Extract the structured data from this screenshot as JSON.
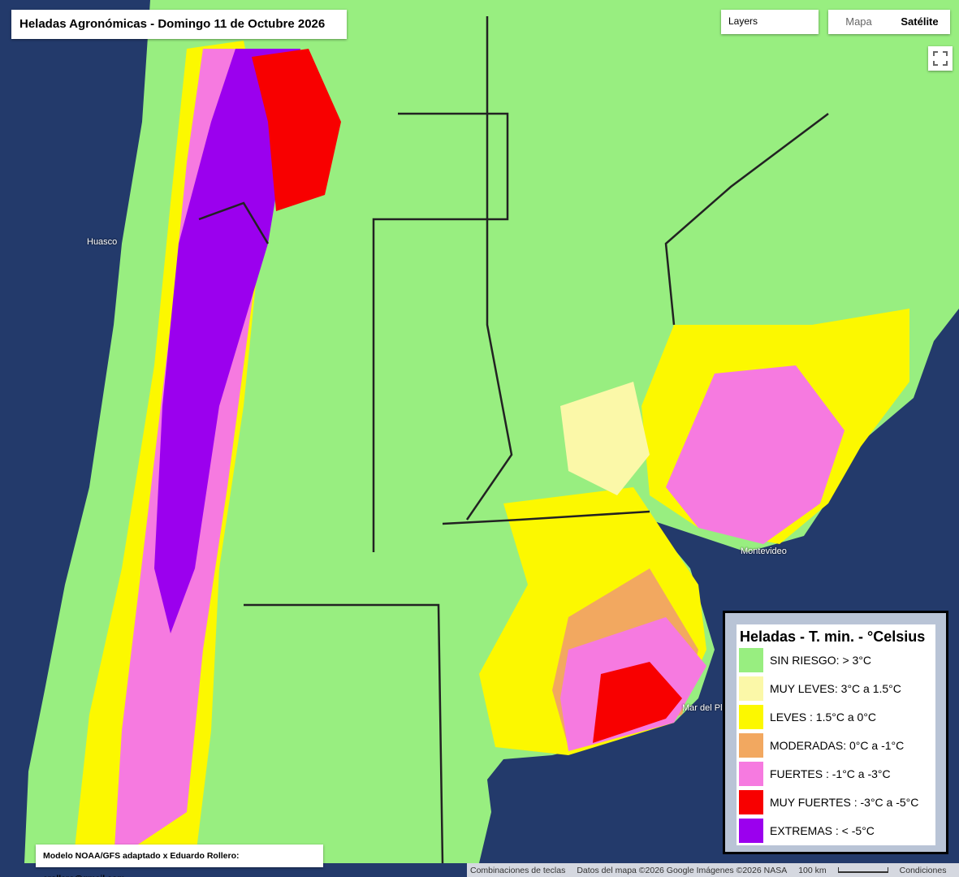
{
  "header": {
    "title": "Heladas Agronómicas - Domingo 11 de Octubre 2026"
  },
  "controls": {
    "layers": "Layers",
    "map": "Mapa",
    "satellite": "Satélite"
  },
  "places": [
    "Huasco",
    "Mar del Plata",
    "Montevideo"
  ],
  "legend": {
    "title": "Heladas - T. min. - °Celsius",
    "items": [
      {
        "label": "SIN RIESGO: > 3°C",
        "color": "#98ee80"
      },
      {
        "label": "MUY LEVES: 3°C a 1.5°C",
        "color": "#fbf8a8"
      },
      {
        "label": "LEVES : 1.5°C a 0°C",
        "color": "#fcf800"
      },
      {
        "label": "MODERADAS: 0°C a -1°C",
        "color": "#f2a860"
      },
      {
        "label": "FUERTES : -1°C a -3°C",
        "color": "#f67ae0"
      },
      {
        "label": "MUY FUERTES : -3°C a -5°C",
        "color": "#f80000"
      },
      {
        "label": "EXTREMAS : < -5°C",
        "color": "#9b00ee"
      }
    ]
  },
  "credit": "Modelo NOAA/GFS adaptado x Eduardo Rollero: erollero@gmail.com",
  "footer": {
    "shortcuts": "Combinaciones de teclas",
    "data": "Datos del mapa ©2026 Google Imágenes ©2026 NASA",
    "scale": "100 km",
    "terms": "Condiciones"
  }
}
